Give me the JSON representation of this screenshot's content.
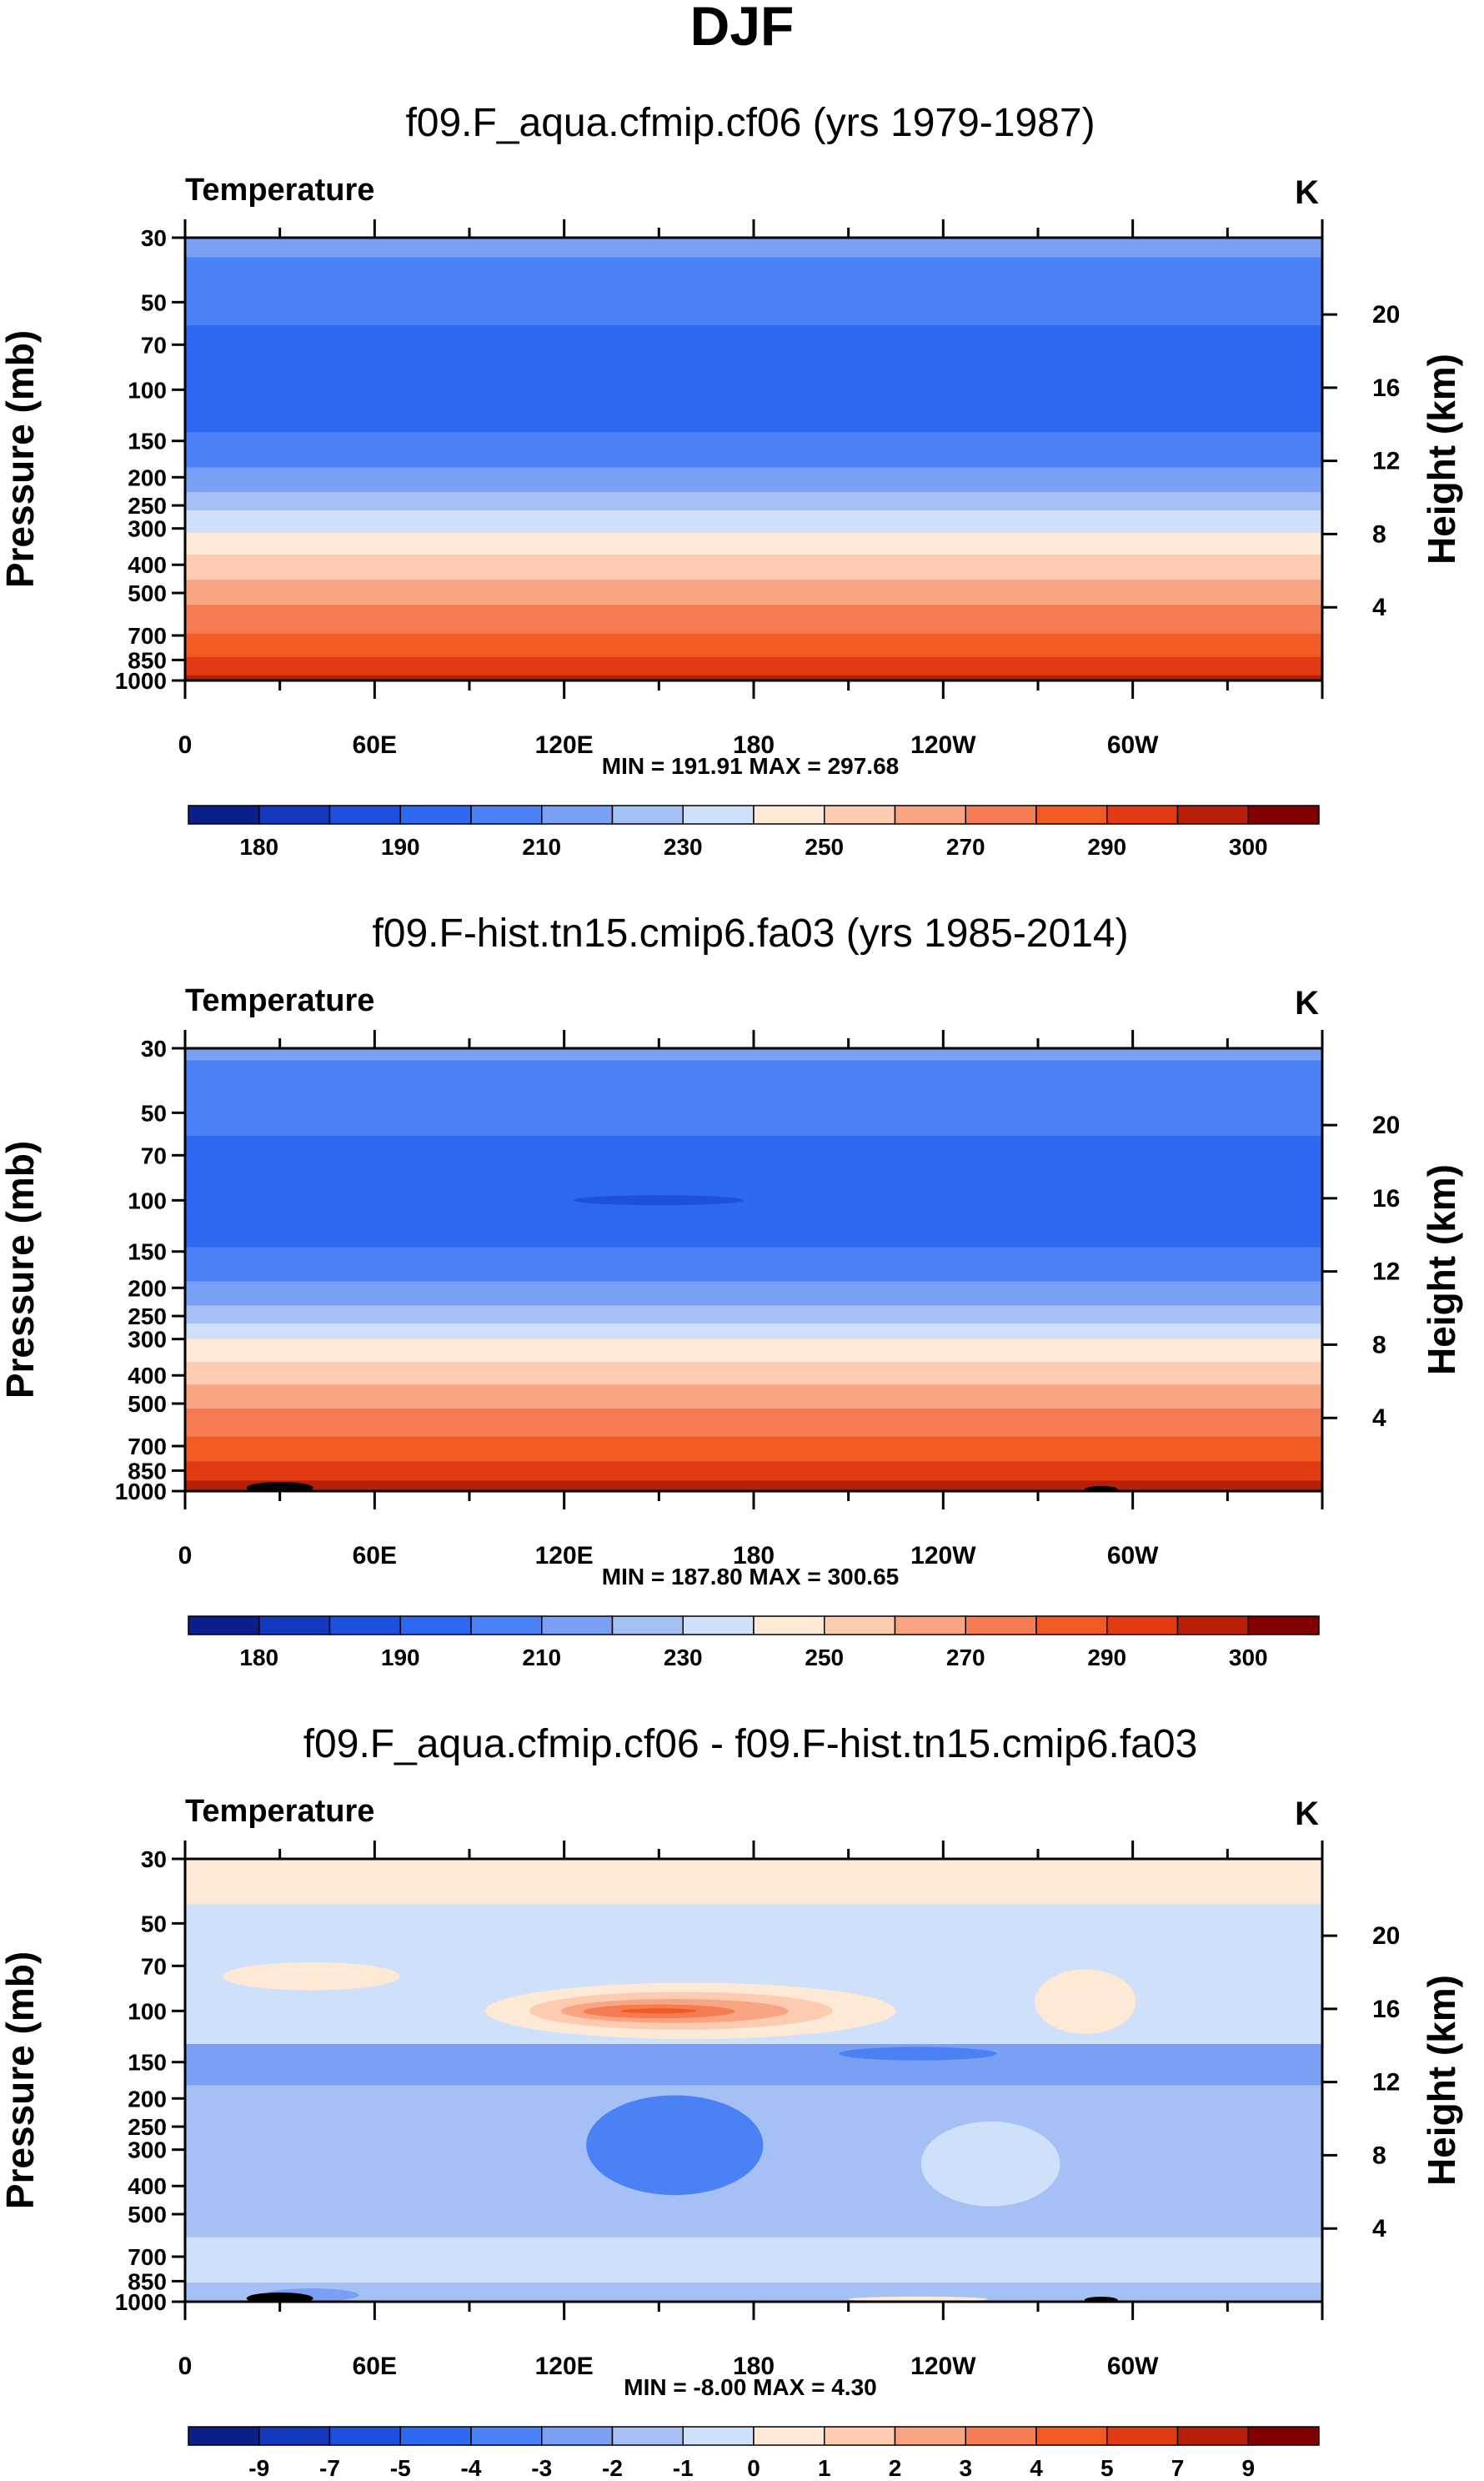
{
  "page_title": "DJF",
  "chart_data": [
    {
      "type": "heatmap",
      "title": "f09.F_aqua.cfmip.cf06 (yrs 1979-1987)",
      "variable_label": "Temperature",
      "units_label": "K",
      "ylabel": "Pressure (mb)",
      "ylabel_right": "Height (km)",
      "x_ticks": [
        "0",
        "60E",
        "120E",
        "180",
        "120W",
        "60W"
      ],
      "p_ticks": [
        30,
        50,
        70,
        100,
        150,
        200,
        250,
        300,
        400,
        500,
        700,
        850,
        1000
      ],
      "h_ticks": [
        20,
        16,
        12,
        8,
        4
      ],
      "stats": "MIN = 191.91   MAX = 297.68",
      "colorbar_labels": [
        "180",
        "190",
        "210",
        "230",
        "250",
        "270",
        "290",
        "300"
      ],
      "colorbar_colors": [
        "#0a1e8c",
        "#1438bd",
        "#1e50e0",
        "#2d68f0",
        "#4a82f5",
        "#7aa0f5",
        "#a5c0f5",
        "#cfe0fa",
        "#fde9d5",
        "#fccbb0",
        "#f9a583",
        "#f57c52",
        "#f25a23",
        "#e23a12",
        "#b81f08",
        "#800000"
      ],
      "bands_pressure_mb": [
        {
          "p_top": 30,
          "p_bottom": 35,
          "color_index": 5
        },
        {
          "p_top": 35,
          "p_bottom": 60,
          "color_index": 4
        },
        {
          "p_top": 60,
          "p_bottom": 140,
          "color_index": 3
        },
        {
          "p_top": 140,
          "p_bottom": 185,
          "color_index": 4
        },
        {
          "p_top": 185,
          "p_bottom": 225,
          "color_index": 5
        },
        {
          "p_top": 225,
          "p_bottom": 260,
          "color_index": 6
        },
        {
          "p_top": 260,
          "p_bottom": 310,
          "color_index": 7
        },
        {
          "p_top": 310,
          "p_bottom": 370,
          "color_index": 8
        },
        {
          "p_top": 370,
          "p_bottom": 450,
          "color_index": 9
        },
        {
          "p_top": 450,
          "p_bottom": 550,
          "color_index": 10
        },
        {
          "p_top": 550,
          "p_bottom": 690,
          "color_index": 11
        },
        {
          "p_top": 690,
          "p_bottom": 830,
          "color_index": 12
        },
        {
          "p_top": 830,
          "p_bottom": 960,
          "color_index": 13
        },
        {
          "p_top": 960,
          "p_bottom": 1000,
          "color_index": 14
        }
      ],
      "blobs": []
    },
    {
      "type": "heatmap",
      "title": "f09.F-hist.tn15.cmip6.fa03 (yrs 1985-2014)",
      "variable_label": "Temperature",
      "units_label": "K",
      "ylabel": "Pressure (mb)",
      "ylabel_right": "Height (km)",
      "x_ticks": [
        "0",
        "60E",
        "120E",
        "180",
        "120W",
        "60W"
      ],
      "p_ticks": [
        30,
        50,
        70,
        100,
        150,
        200,
        250,
        300,
        400,
        500,
        700,
        850,
        1000
      ],
      "h_ticks": [
        20,
        16,
        12,
        8,
        4
      ],
      "stats": "MIN = 187.80   MAX = 300.65",
      "colorbar_labels": [
        "180",
        "190",
        "210",
        "230",
        "250",
        "270",
        "290",
        "300"
      ],
      "colorbar_colors": [
        "#0a1e8c",
        "#1438bd",
        "#1e50e0",
        "#2d68f0",
        "#4a82f5",
        "#7aa0f5",
        "#a5c0f5",
        "#cfe0fa",
        "#fde9d5",
        "#fccbb0",
        "#f9a583",
        "#f57c52",
        "#f25a23",
        "#e23a12",
        "#b81f08",
        "#800000"
      ],
      "bands_pressure_mb": [
        {
          "p_top": 30,
          "p_bottom": 33,
          "color_index": 5
        },
        {
          "p_top": 33,
          "p_bottom": 60,
          "color_index": 4
        },
        {
          "p_top": 60,
          "p_bottom": 145,
          "color_index": 3
        },
        {
          "p_top": 145,
          "p_bottom": 190,
          "color_index": 4
        },
        {
          "p_top": 190,
          "p_bottom": 230,
          "color_index": 5
        },
        {
          "p_top": 230,
          "p_bottom": 265,
          "color_index": 6
        },
        {
          "p_top": 265,
          "p_bottom": 300,
          "color_index": 7
        },
        {
          "p_top": 300,
          "p_bottom": 360,
          "color_index": 8
        },
        {
          "p_top": 360,
          "p_bottom": 430,
          "color_index": 9
        },
        {
          "p_top": 430,
          "p_bottom": 520,
          "color_index": 10
        },
        {
          "p_top": 520,
          "p_bottom": 650,
          "color_index": 11
        },
        {
          "p_top": 650,
          "p_bottom": 790,
          "color_index": 12
        },
        {
          "p_top": 790,
          "p_bottom": 920,
          "color_index": 13
        },
        {
          "p_top": 920,
          "p_bottom": 1000,
          "color_index": 14
        }
      ],
      "blobs": [
        {
          "lon_center": 150,
          "lon_half_width": 27,
          "p_center": 100,
          "p_top": 96,
          "p_bottom": 104,
          "color_index": 2
        }
      ]
    },
    {
      "type": "heatmap",
      "title": "f09.F_aqua.cfmip.cf06 - f09.F-hist.tn15.cmip6.fa03",
      "variable_label": "Temperature",
      "units_label": "K",
      "ylabel": "Pressure (mb)",
      "ylabel_right": "Height (km)",
      "x_ticks": [
        "0",
        "60E",
        "120E",
        "180",
        "120W",
        "60W"
      ],
      "p_ticks": [
        30,
        50,
        70,
        100,
        150,
        200,
        250,
        300,
        400,
        500,
        700,
        850,
        1000
      ],
      "h_ticks": [
        20,
        16,
        12,
        8,
        4
      ],
      "stats": "MIN =  -8.00   MAX =   4.30",
      "colorbar_labels": [
        "-9",
        "-7",
        "-5",
        "-4",
        "-3",
        "-2",
        "-1",
        "0",
        "1",
        "2",
        "3",
        "4",
        "5",
        "7",
        "9"
      ],
      "colorbar_colors": [
        "#0a1e8c",
        "#1438bd",
        "#1e50e0",
        "#2d68f0",
        "#4a82f5",
        "#7aa0f5",
        "#a5c0f5",
        "#cfe0fa",
        "#fde9d5",
        "#fccbb0",
        "#f9a583",
        "#f57c52",
        "#f25a23",
        "#e23a12",
        "#b81f08",
        "#800000"
      ],
      "bands_pressure_mb": [
        {
          "p_top": 30,
          "p_bottom": 43,
          "color_index": 8
        },
        {
          "p_top": 43,
          "p_bottom": 130,
          "color_index": 7
        },
        {
          "p_top": 130,
          "p_bottom": 180,
          "color_index": 5
        },
        {
          "p_top": 180,
          "p_bottom": 600,
          "color_index": 6
        },
        {
          "p_top": 600,
          "p_bottom": 860,
          "color_index": 7
        },
        {
          "p_top": 860,
          "p_bottom": 1000,
          "color_index": 6
        }
      ],
      "blobs": [
        {
          "lon_center": 160,
          "lon_half_width": 65,
          "p_center": 100,
          "p_top": 80,
          "p_bottom": 125,
          "color_index": 8
        },
        {
          "lon_center": 157,
          "lon_half_width": 48,
          "p_center": 100,
          "p_top": 86,
          "p_bottom": 116,
          "color_index": 9
        },
        {
          "lon_center": 155,
          "lon_half_width": 36,
          "p_center": 100,
          "p_top": 91,
          "p_bottom": 110,
          "color_index": 10
        },
        {
          "lon_center": 150,
          "lon_half_width": 24,
          "p_center": 100,
          "p_top": 95,
          "p_bottom": 106,
          "color_index": 11
        },
        {
          "lon_center": 150,
          "lon_half_width": 12,
          "p_center": 100,
          "p_top": 98,
          "p_bottom": 102,
          "color_index": 12
        },
        {
          "lon_center": 40,
          "lon_half_width": 28,
          "p_center": 75,
          "p_top": 68,
          "p_bottom": 85,
          "color_index": 8
        },
        {
          "lon_center": 285,
          "lon_half_width": 16,
          "p_center": 95,
          "p_top": 72,
          "p_bottom": 120,
          "color_index": 8
        },
        {
          "lon_center": 155,
          "lon_half_width": 28,
          "p_center": 290,
          "p_top": 195,
          "p_bottom": 430,
          "color_index": 4
        },
        {
          "lon_center": 232,
          "lon_half_width": 25,
          "p_center": 140,
          "p_top": 133,
          "p_bottom": 148,
          "color_index": 4
        },
        {
          "lon_center": 255,
          "lon_half_width": 22,
          "p_center": 330,
          "p_top": 240,
          "p_bottom": 470,
          "color_index": 7
        },
        {
          "lon_center": 40,
          "lon_half_width": 15,
          "p_center": 960,
          "p_top": 900,
          "p_bottom": 1000,
          "color_index": 5
        },
        {
          "lon_center": 232,
          "lon_half_width": 22,
          "p_center": 990,
          "p_top": 960,
          "p_bottom": 1000,
          "color_index": 8
        }
      ]
    }
  ]
}
